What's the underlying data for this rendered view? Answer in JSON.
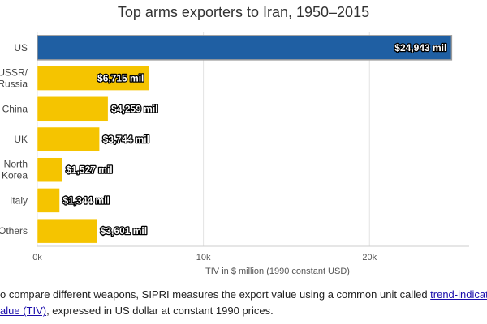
{
  "chart_data": {
    "type": "bar",
    "orientation": "horizontal",
    "title": "Top arms exporters to Iran, 1950–2015",
    "xlabel": "TIV in $ million (1990 constant USD)",
    "categories": [
      "US",
      "USSR/\nRussia",
      "China",
      "UK",
      "North\nKorea",
      "Italy",
      "Others"
    ],
    "values": [
      24943,
      6715,
      4259,
      3744,
      1527,
      1344,
      3601
    ],
    "data_labels": [
      "$24,943 mil",
      "$6,715 mil",
      "$4,259 mil",
      "$3,744 mil",
      "$1,527 mil",
      "$1,344 mil",
      "$3,601 mil"
    ],
    "xlim": [
      0,
      26000
    ],
    "xticks": [
      0,
      10000,
      20000
    ],
    "xtick_labels": [
      "0k",
      "10k",
      "20k"
    ],
    "bar_colors": [
      "#1f5fa3",
      "#f5c400",
      "#f5c400",
      "#f5c400",
      "#f5c400",
      "#f5c400",
      "#f5c400"
    ],
    "highlight_border": "#9b9b9b",
    "grid": "vertical"
  },
  "caption": {
    "line1_prefix": "o compare different weapons, SIPRI measures the export value using a common unit called ",
    "line1_link": "trend-indicator",
    "line2_link": "alue (TIV)",
    "line2_suffix": ", expressed in US dollar at constant 1990 prices."
  }
}
